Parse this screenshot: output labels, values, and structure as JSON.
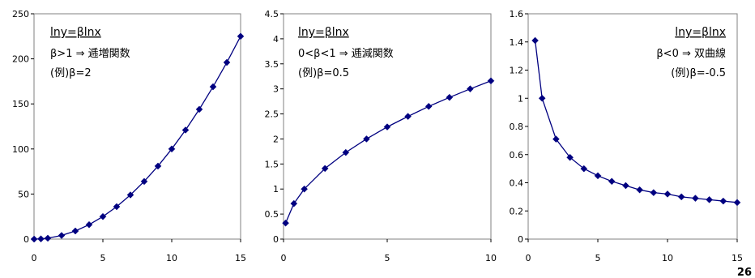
{
  "page_number": "26",
  "marker_color": "#000080",
  "chart_data": [
    {
      "type": "line",
      "annotations": [
        "lny=βlnx",
        "β>1 ⇒ 逓増関数",
        "(例)β=2"
      ],
      "x": [
        0.01,
        0.5,
        1,
        2,
        3,
        4,
        5,
        6,
        7,
        8,
        9,
        10,
        11,
        12,
        13,
        14,
        15
      ],
      "series": [
        {
          "values": [
            0.0,
            0.25,
            1,
            4,
            9,
            16,
            25,
            36,
            49,
            64,
            81,
            100,
            121,
            144,
            169,
            196,
            225
          ]
        }
      ],
      "xlim": [
        0,
        15
      ],
      "ylim": [
        0,
        250
      ],
      "xticks": [
        0,
        5,
        10,
        15
      ],
      "yticks": [
        0,
        50,
        100,
        150,
        200,
        250
      ],
      "grid": false
    },
    {
      "type": "line",
      "annotations": [
        "lny=βlnx",
        "0<β<1 ⇒ 逓減関数",
        "(例)β=0.5"
      ],
      "x": [
        0.1,
        0.5,
        1,
        2,
        3,
        4,
        5,
        6,
        7,
        8,
        9,
        10
      ],
      "series": [
        {
          "values": [
            0.32,
            0.71,
            1.0,
            1.41,
            1.73,
            2.0,
            2.24,
            2.45,
            2.65,
            2.83,
            3.0,
            3.16
          ]
        }
      ],
      "xlim": [
        0,
        10
      ],
      "ylim": [
        0,
        4.5
      ],
      "xticks": [
        0,
        5,
        10
      ],
      "yticks": [
        0,
        0.5,
        1,
        1.5,
        2,
        2.5,
        3,
        3.5,
        4,
        4.5
      ],
      "grid": false
    },
    {
      "type": "line",
      "annotations": [
        "lny=βlnx",
        "β<0 ⇒ 双曲線",
        "(例)β=-0.5"
      ],
      "x": [
        0.5,
        1,
        2,
        3,
        4,
        5,
        6,
        7,
        8,
        9,
        10,
        11,
        12,
        13,
        14,
        15
      ],
      "series": [
        {
          "values": [
            1.41,
            1.0,
            0.71,
            0.58,
            0.5,
            0.45,
            0.41,
            0.38,
            0.35,
            0.33,
            0.32,
            0.3,
            0.29,
            0.28,
            0.27,
            0.26
          ]
        }
      ],
      "xlim": [
        0,
        15
      ],
      "ylim": [
        0,
        1.6
      ],
      "xticks": [
        0,
        5,
        10,
        15
      ],
      "yticks": [
        0,
        0.2,
        0.4,
        0.6,
        0.8,
        1,
        1.2,
        1.4,
        1.6
      ],
      "grid": false
    }
  ]
}
